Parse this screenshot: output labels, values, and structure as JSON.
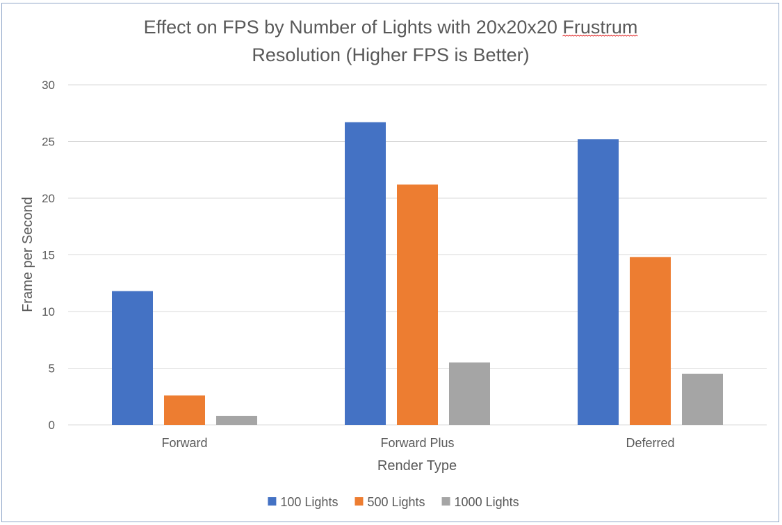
{
  "chart_data": {
    "type": "bar",
    "title_lines": [
      "Effect on FPS by Number of Lights with 20x20x20 Frustrum",
      "Resolution (Higher FPS is Better)"
    ],
    "title_misspelled_word": "Frustrum",
    "xlabel": "Render Type",
    "ylabel": "Frame per Second",
    "categories": [
      "Forward",
      "Forward Plus",
      "Deferred"
    ],
    "ylim": [
      0,
      30
    ],
    "yticks": [
      0,
      5,
      10,
      15,
      20,
      25,
      30
    ],
    "grid": true,
    "legend_position": "bottom",
    "series": [
      {
        "name": "100 Lights",
        "color": "#4472c4",
        "values": [
          11.8,
          26.7,
          25.2
        ]
      },
      {
        "name": "500 Lights",
        "color": "#ed7d31",
        "values": [
          2.6,
          21.2,
          14.8
        ]
      },
      {
        "name": "1000 Lights",
        "color": "#a5a5a5",
        "values": [
          0.8,
          5.5,
          4.5
        ]
      }
    ]
  }
}
